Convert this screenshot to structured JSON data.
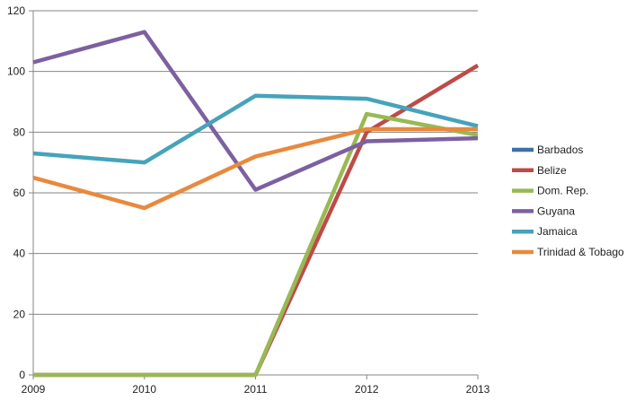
{
  "chart_data": {
    "type": "line",
    "title": "",
    "xlabel": "",
    "ylabel": "",
    "x": [
      "2009",
      "2010",
      "2011",
      "2012",
      "2013"
    ],
    "ylim": [
      0,
      120
    ],
    "yticks": [
      0,
      20,
      40,
      60,
      80,
      100,
      120
    ],
    "grid": true,
    "legend_position": "right",
    "series": [
      {
        "name": "Barbados",
        "color": "#3f6fa8",
        "values": [
          null,
          null,
          null,
          null,
          null
        ]
      },
      {
        "name": "Belize",
        "color": "#be4b48",
        "values": [
          0,
          0,
          0,
          80,
          102
        ]
      },
      {
        "name": "Dom. Rep.",
        "color": "#98b954",
        "values": [
          0,
          0,
          0,
          86,
          79
        ]
      },
      {
        "name": "Guyana",
        "color": "#7d60a0",
        "values": [
          103,
          113,
          61,
          77,
          78
        ]
      },
      {
        "name": "Jamaica",
        "color": "#46a3bb",
        "values": [
          73,
          70,
          92,
          91,
          82
        ]
      },
      {
        "name": "Trinidad & Tobago",
        "color": "#e8893e",
        "values": [
          65,
          55,
          72,
          81,
          81
        ]
      }
    ]
  }
}
